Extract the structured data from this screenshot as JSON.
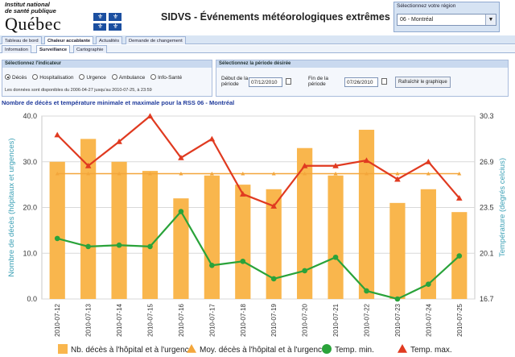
{
  "header": {
    "institute": [
      "Institut national",
      "de santé publique"
    ],
    "brand": "Québec",
    "app_title": "SIDVS - Événements météorologiques extrêmes",
    "region_label": "Sélectionnez votre région",
    "region_value": "06 - Montréal"
  },
  "tabs_main": [
    "Tableau de bord",
    "Chaleur accablante",
    "Actualités",
    "Demande de changement"
  ],
  "tabs_sub": [
    "Information",
    "Surveillance",
    "Cartographie"
  ],
  "indicator_panel": {
    "title": "Sélectionnez l'indicateur",
    "options": [
      "Décès",
      "Hospitalisation",
      "Urgence",
      "Ambulance",
      "Info-Santé"
    ],
    "selected": "Décès",
    "note": "Les données sont disponibles du 2006-04-27 jusqu'au 2010-07-25, à 23:59"
  },
  "period_panel": {
    "title": "Sélectionnez la période désirée",
    "start_label": "Début de la période",
    "start_value": "07/12/2010",
    "end_label": "Fin de la période",
    "end_value": "07/26/2010",
    "refresh_label": "Rafraîchir le graphique"
  },
  "chart_data": {
    "type": "bar",
    "title": "Nombre de décès et température minimale et maximale pour la RSS 06 - Montréal",
    "xlabel": "",
    "ylabel": "Nombre de décès (hôpitaux et urgences)",
    "ylabel_right": "Température (degrés celcius)",
    "ylim": [
      0,
      40
    ],
    "yticks": [
      "0.0",
      "10.0",
      "20.0",
      "30.0",
      "40.0"
    ],
    "ylim_right": [
      16.7,
      30.3
    ],
    "yticks_right": [
      "16.7",
      "20.1",
      "23.5",
      "26.9",
      "30.3"
    ],
    "grid": true,
    "legend_position": "bottom",
    "categories": [
      "2010-07-12",
      "2010-07-13",
      "2010-07-14",
      "2010-07-15",
      "2010-07-16",
      "2010-07-17",
      "2010-07-18",
      "2010-07-19",
      "2010-07-20",
      "2010-07-21",
      "2010-07-22",
      "2010-07-23",
      "2010-07-24",
      "2010-07-25"
    ],
    "series": [
      {
        "name": "Nb. décès à l'hôpital et à l'urgence",
        "type": "bar",
        "axis": "left",
        "color": "#f9b64d",
        "values": [
          30,
          35,
          30,
          28,
          22,
          27,
          25,
          24,
          33,
          27,
          37,
          21,
          24,
          19
        ]
      },
      {
        "name": "Moy. décès à l'hôpital et à l'urgence",
        "type": "line",
        "axis": "left",
        "color": "#f3a63b",
        "marker": "triangle",
        "values": [
          27.4,
          27.4,
          27.4,
          27.4,
          27.4,
          27.4,
          27.4,
          27.4,
          27.4,
          27.4,
          27.4,
          27.4,
          27.4,
          27.4
        ]
      },
      {
        "name": "Temp. min.",
        "type": "line",
        "axis": "right",
        "color": "#2aa33a",
        "marker": "circle",
        "values": [
          21.2,
          20.6,
          20.7,
          20.6,
          23.2,
          19.2,
          19.5,
          18.2,
          18.8,
          19.8,
          17.3,
          16.7,
          17.8,
          19.9
        ]
      },
      {
        "name": "Temp. max.",
        "type": "line",
        "axis": "right",
        "color": "#e03a20",
        "marker": "triangle",
        "values": [
          28.9,
          26.6,
          28.4,
          30.3,
          27.2,
          28.6,
          24.5,
          23.6,
          26.6,
          26.6,
          27.0,
          25.6,
          26.9,
          24.2
        ]
      }
    ]
  },
  "colors": {
    "accent": "#1f3a9b",
    "axis_right": "#3ba0b5",
    "bar": "#f9b64d",
    "tmin": "#2aa33a",
    "tmax": "#e03a20",
    "avg": "#f3a63b"
  }
}
